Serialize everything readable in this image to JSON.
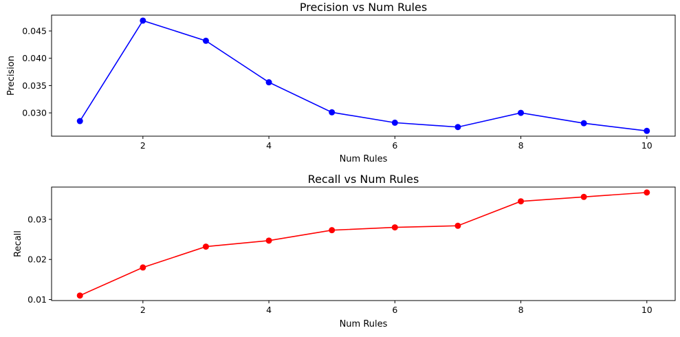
{
  "chart_data": [
    {
      "type": "line",
      "title": "Precision vs Num Rules",
      "xlabel": "Num Rules",
      "ylabel": "Precision",
      "xlim": [
        0.55,
        10.45
      ],
      "ylim": [
        0.02573,
        0.0479
      ],
      "xticks": [
        2,
        4,
        6,
        8,
        10
      ],
      "yticks": [
        0.03,
        0.035,
        0.04,
        0.045
      ],
      "ytick_labels": [
        "0.030",
        "0.035",
        "0.040",
        "0.045"
      ],
      "grid": false,
      "series": [
        {
          "color": "#0000ff",
          "marker": "circle",
          "x": [
            1,
            2,
            3,
            4,
            5,
            6,
            7,
            8,
            9,
            10
          ],
          "values": [
            0.0285,
            0.0469,
            0.0432,
            0.0356,
            0.0301,
            0.0282,
            0.0274,
            0.03,
            0.0281,
            0.0267
          ]
        }
      ]
    },
    {
      "type": "line",
      "title": "Recall vs Num Rules",
      "xlabel": "Num Rules",
      "ylabel": "Recall",
      "xlim": [
        0.55,
        10.45
      ],
      "ylim": [
        0.00975,
        0.03805
      ],
      "xticks": [
        2,
        4,
        6,
        8,
        10
      ],
      "yticks": [
        0.01,
        0.02,
        0.03
      ],
      "ytick_labels": [
        "0.01",
        "0.02",
        "0.03"
      ],
      "grid": false,
      "series": [
        {
          "color": "#ff0000",
          "marker": "circle",
          "x": [
            1,
            2,
            3,
            4,
            5,
            6,
            7,
            8,
            9,
            10
          ],
          "values": [
            0.011,
            0.018,
            0.0232,
            0.0247,
            0.0273,
            0.028,
            0.0284,
            0.0345,
            0.0356,
            0.0367
          ]
        }
      ]
    }
  ]
}
